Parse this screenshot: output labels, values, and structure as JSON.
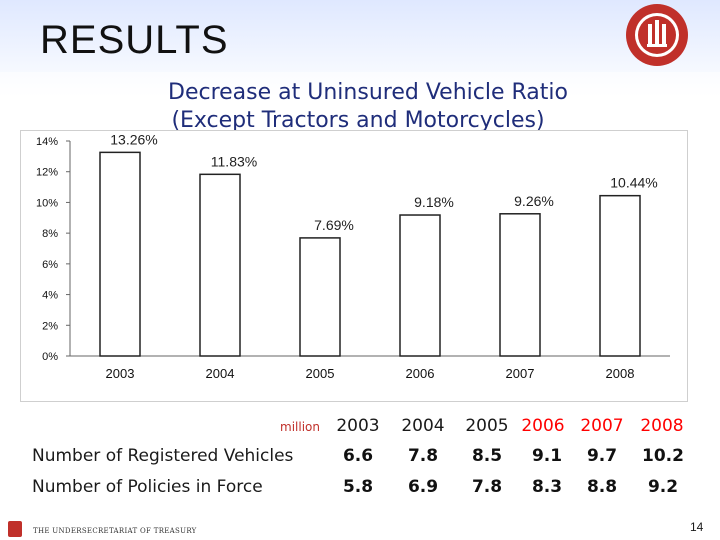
{
  "slide": {
    "title": "RESULTS",
    "subtitle_line1": "Decrease at Uninsured Vehicle Ratio",
    "subtitle_line2": "(Except Tractors and Motorcycles)",
    "footer": "THE UNDERSECRETARIAT OF TREASURY",
    "page_number": "14"
  },
  "chart_data": {
    "type": "bar",
    "categories": [
      "2003",
      "2004",
      "2005",
      "2006",
      "2007",
      "2008"
    ],
    "values": [
      13.26,
      11.83,
      7.69,
      9.18,
      9.26,
      10.44
    ],
    "data_labels": [
      "13.26%",
      "11.83%",
      "7.69%",
      "9.18%",
      "9.26%",
      "10.44%"
    ],
    "y_ticks": [
      "0%",
      "2%",
      "4%",
      "6%",
      "8%",
      "10%",
      "12%",
      "14%"
    ],
    "ylim": [
      0,
      14
    ],
    "grid": false,
    "bar_color": "#ffffff",
    "bar_stroke": "#222222"
  },
  "table": {
    "unit": "million",
    "years": [
      "2003",
      "2004",
      "2005",
      "2006",
      "2007",
      "2008"
    ],
    "rows": [
      {
        "label": "Number of Registered Vehicles",
        "values": [
          "6.6",
          "7.8",
          "8.5",
          "9.1",
          "9.7",
          "10.2"
        ]
      },
      {
        "label": "Number of Policies in Force",
        "values": [
          "5.8",
          "6.9",
          "7.8",
          "8.3",
          "8.8",
          "9.2"
        ]
      }
    ]
  },
  "colors": {
    "title_band": "#dfe8ff",
    "subtitle": "#1f2d7a",
    "highlight_years": "#ff0000",
    "unit_text": "#c0302a",
    "logo": "#c0302a"
  }
}
